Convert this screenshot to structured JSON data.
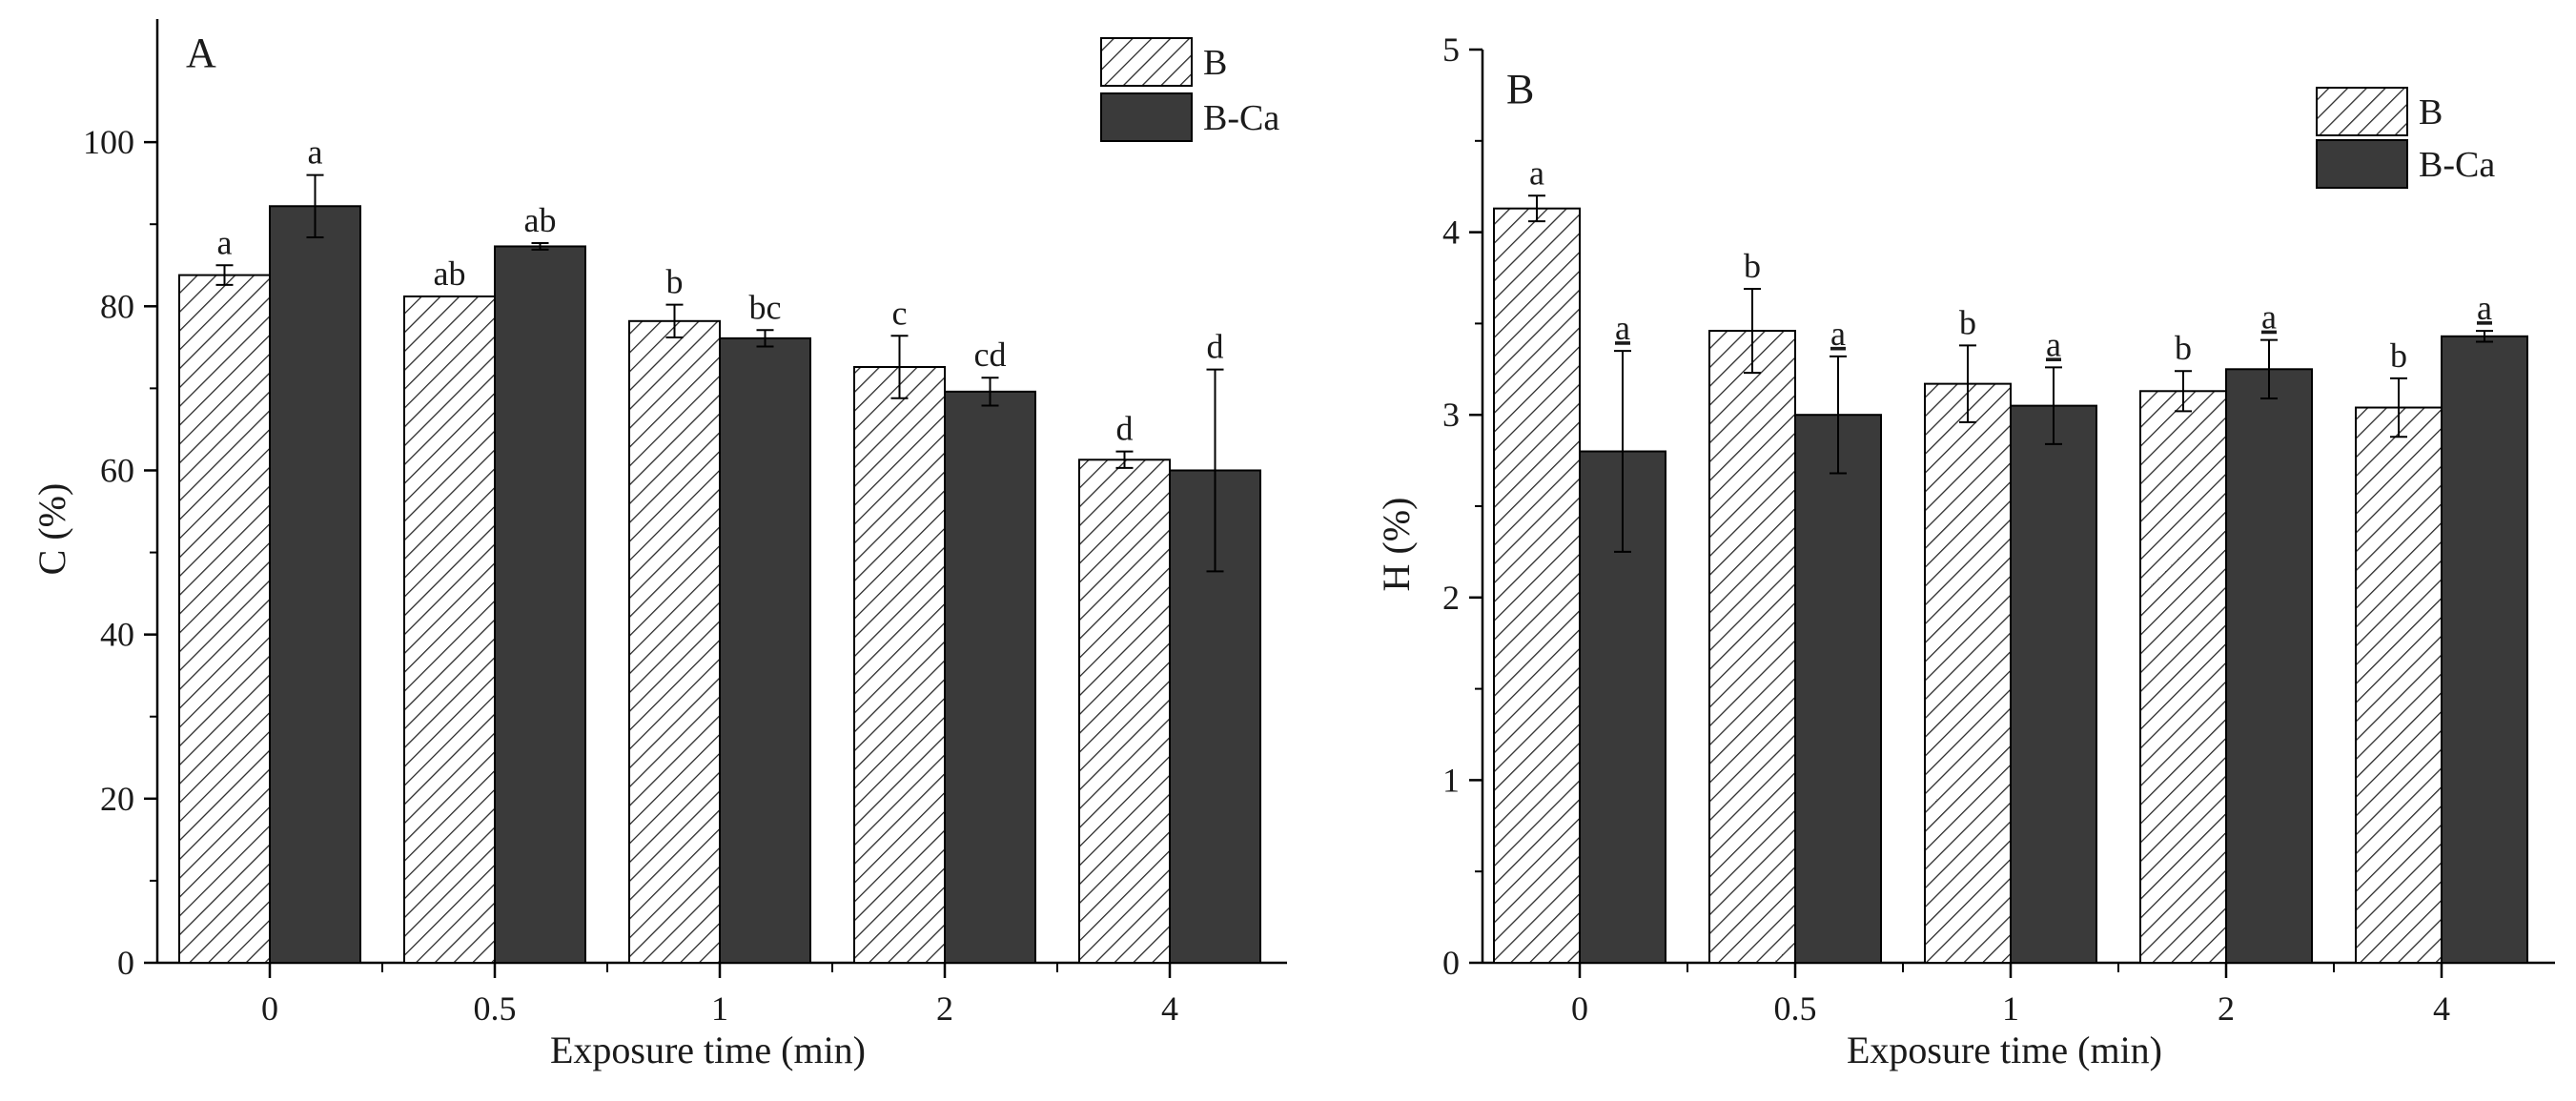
{
  "chart_data": [
    {
      "type": "bar",
      "panel_label": "A",
      "xlabel": "Exposure time (min)",
      "ylabel": "C (%)",
      "ylim": [
        0,
        115
      ],
      "yticks": [
        0,
        20,
        40,
        60,
        80,
        100
      ],
      "categories": [
        "0",
        "0.5",
        "1",
        "2",
        "4"
      ],
      "legend_position": "top-right",
      "series": [
        {
          "name": "B",
          "style": "hatched",
          "values": [
            83.8,
            81.2,
            78.2,
            72.6,
            61.3
          ],
          "errors": [
            1.2,
            0,
            2.0,
            3.8,
            1.0
          ],
          "labels": [
            "a",
            "ab",
            "b",
            "c",
            "d"
          ]
        },
        {
          "name": "B-Ca",
          "style": "solid",
          "color": "#3a3a3a",
          "values": [
            92.2,
            87.3,
            76.1,
            69.6,
            60.0
          ],
          "errors": [
            3.8,
            0.4,
            1.0,
            1.7,
            12.3
          ],
          "labels": [
            "a",
            "ab",
            "bc",
            "cd",
            "d"
          ]
        }
      ]
    },
    {
      "type": "bar",
      "panel_label": "B",
      "xlabel": "Exposure time (min)",
      "ylabel": "H (%)",
      "ylim": [
        0,
        5
      ],
      "yticks": [
        0,
        1,
        2,
        3,
        4,
        5
      ],
      "categories": [
        "0",
        "0.5",
        "1",
        "2",
        "4"
      ],
      "legend_position": "top-right",
      "series": [
        {
          "name": "B",
          "style": "hatched",
          "values": [
            4.13,
            3.46,
            3.17,
            3.13,
            3.04
          ],
          "errors": [
            0.07,
            0.23,
            0.21,
            0.11,
            0.16
          ],
          "labels": [
            "a",
            "b",
            "b",
            "b",
            "b"
          ]
        },
        {
          "name": "B-Ca",
          "style": "solid",
          "color": "#3a3a3a",
          "values": [
            2.8,
            3.0,
            3.05,
            3.25,
            3.43
          ],
          "errors": [
            0.55,
            0.32,
            0.21,
            0.16,
            0.03
          ],
          "labels": [
            "a",
            "a",
            "a",
            "a",
            "a"
          ]
        }
      ]
    }
  ]
}
